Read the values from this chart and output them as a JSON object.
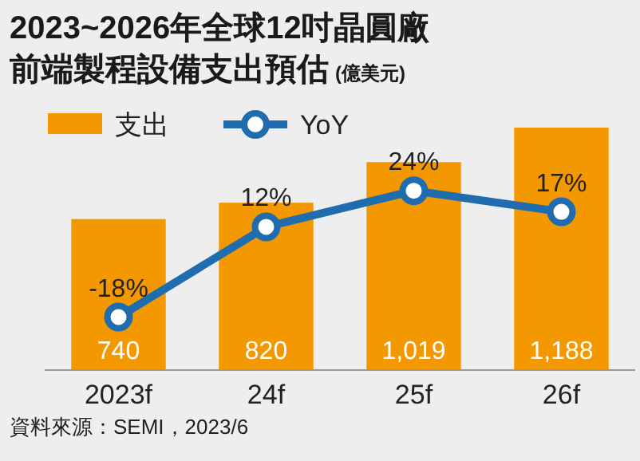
{
  "chart_data": {
    "type": "bar",
    "title": "2023~2026年全球12吋晶圓廠",
    "subtitle": "前端製程設備支出預估",
    "ylabel": "(億美元)",
    "categories": [
      "2023f",
      "24f",
      "25f",
      "26f"
    ],
    "series": [
      {
        "name": "支出",
        "color": "#f39800",
        "values": [
          740,
          820,
          1019,
          1188
        ],
        "value_labels": [
          "740",
          "820",
          "1,019",
          "1,188"
        ]
      },
      {
        "name": "YoY",
        "type": "line",
        "axis": "y2",
        "color": "#1f6cae",
        "values": [
          -18,
          12,
          24,
          17
        ],
        "value_labels": [
          "-18%",
          "12%",
          "24%",
          "17%"
        ]
      }
    ],
    "marker": "circle",
    "legend": "top left",
    "annotations": [
      "資料來源：SEMI，2023/6"
    ]
  }
}
